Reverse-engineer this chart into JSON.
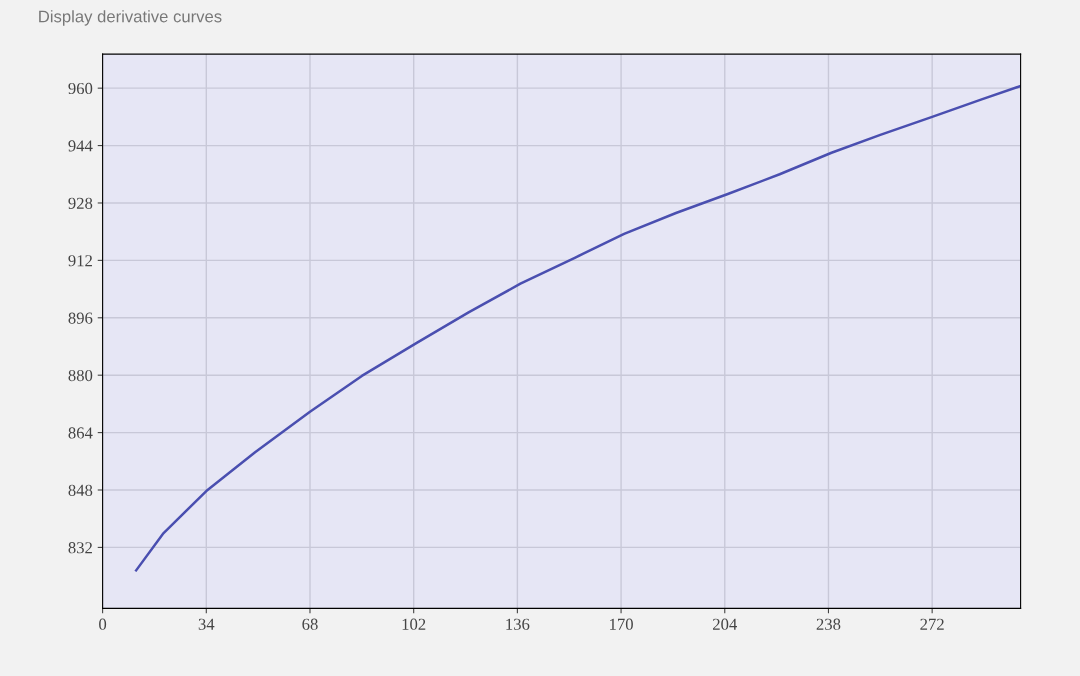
{
  "chart_data": {
    "type": "line",
    "annotations": [
      "Display derivative curves"
    ],
    "x": [
      11,
      20,
      34,
      50,
      68,
      85,
      103,
      120,
      137,
      155,
      171,
      188,
      205,
      222,
      239,
      255,
      272,
      288,
      301
    ],
    "series": [
      {
        "color": "#4a4fb0",
        "values": [
          825.6,
          836,
          847.7,
          858.5,
          869.8,
          879.8,
          889,
          897.5,
          905.5,
          912.8,
          919.4,
          925.2,
          930.5,
          936,
          942,
          947,
          952,
          956.8,
          960.6
        ]
      }
    ],
    "xlim": [
      0,
      301
    ],
    "xticks": [
      0,
      34,
      68,
      102,
      136,
      170,
      204,
      238,
      272
    ],
    "ylim": [
      815,
      969.5
    ],
    "yticks": [
      832,
      848,
      864,
      880,
      896,
      912,
      928,
      944,
      960
    ],
    "grid": true,
    "marker": "none",
    "line_style": "solid"
  }
}
